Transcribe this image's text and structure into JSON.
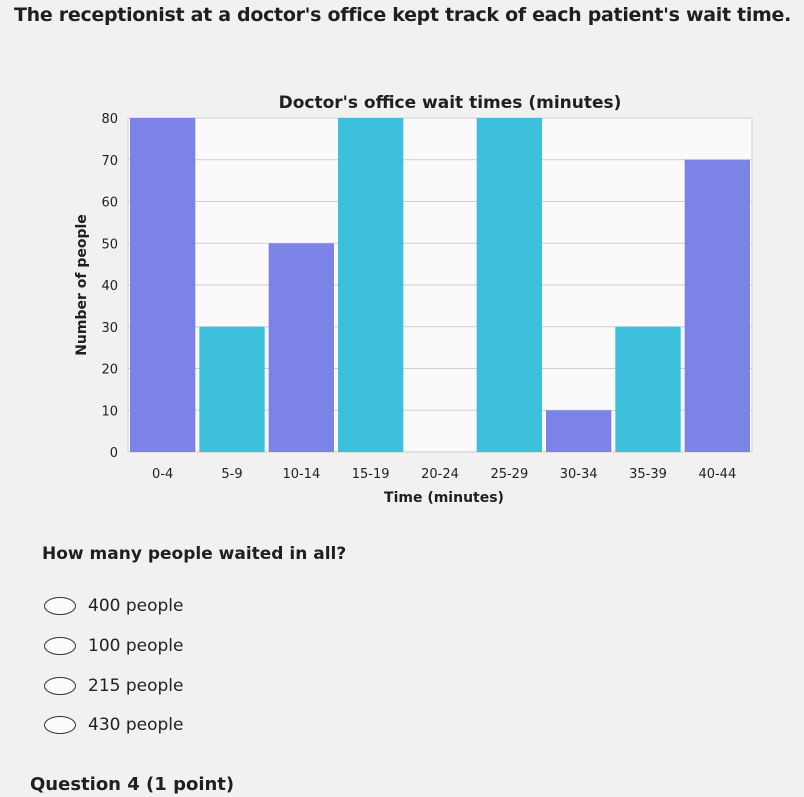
{
  "question_intro": "The receptionist at a doctor's office kept track of each patient's wait time.",
  "chart_data": {
    "type": "bar",
    "title": "Doctor's office wait times (minutes)",
    "xlabel": "Time (minutes)",
    "ylabel": "Number of people",
    "categories": [
      "0-4",
      "5-9",
      "10-14",
      "15-19",
      "20-24",
      "25-29",
      "30-34",
      "35-39",
      "40-44"
    ],
    "values": [
      80,
      30,
      50,
      80,
      0,
      80,
      10,
      30,
      70
    ],
    "ylim": [
      0,
      80
    ],
    "yticks": [
      0,
      10,
      20,
      30,
      40,
      50,
      60,
      70,
      80
    ],
    "grid": true,
    "colors": [
      "#7b83e6",
      "#3cc0db",
      "#7b83e6",
      "#3cc0db",
      "#7b83e6",
      "#3cc0db",
      "#7b83e6",
      "#3cc0db",
      "#7b83e6"
    ]
  },
  "question": "How many people waited in all?",
  "options": [
    "400 people",
    "100 people",
    "215 people",
    "430 people"
  ],
  "next_question": "Question 4 (1 point)"
}
